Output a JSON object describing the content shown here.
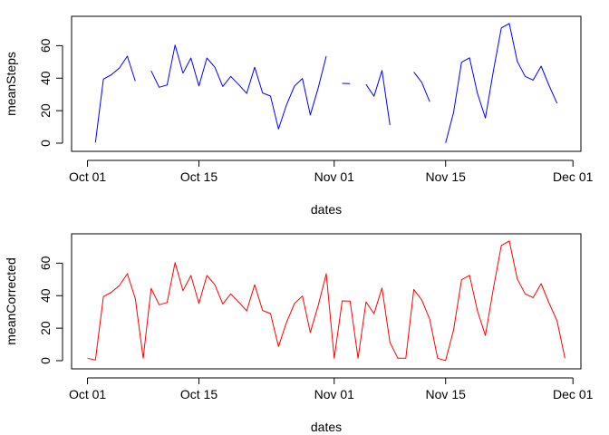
{
  "chart_data": [
    {
      "type": "line",
      "xlabel": "dates",
      "ylabel": "meanSteps",
      "color": "#0000ff",
      "ylim": [
        0,
        73.6
      ],
      "xlim": [
        "2012-09-29",
        "2012-12-02"
      ],
      "x_ticks": [
        {
          "date": "2012-10-01",
          "label": "Oct 01"
        },
        {
          "date": "2012-10-15",
          "label": "Oct 15"
        },
        {
          "date": "2012-11-01",
          "label": "Nov 01"
        },
        {
          "date": "2012-11-15",
          "label": "Nov 15"
        },
        {
          "date": "2012-12-01",
          "label": "Dec 01"
        }
      ],
      "y_ticks": [
        0,
        20,
        40,
        60
      ],
      "series": [
        {
          "x": [
            "2012-10-01",
            "2012-10-02",
            "2012-10-03",
            "2012-10-04",
            "2012-10-05",
            "2012-10-06",
            "2012-10-07",
            "2012-10-08",
            "2012-10-09",
            "2012-10-10",
            "2012-10-11",
            "2012-10-12",
            "2012-10-13",
            "2012-10-14",
            "2012-10-15",
            "2012-10-16",
            "2012-10-17",
            "2012-10-18",
            "2012-10-19",
            "2012-10-20",
            "2012-10-21",
            "2012-10-22",
            "2012-10-23",
            "2012-10-24",
            "2012-10-25",
            "2012-10-26",
            "2012-10-27",
            "2012-10-28",
            "2012-10-29",
            "2012-10-30",
            "2012-10-31",
            "2012-11-01",
            "2012-11-02",
            "2012-11-03",
            "2012-11-04",
            "2012-11-05",
            "2012-11-06",
            "2012-11-07",
            "2012-11-08",
            "2012-11-09",
            "2012-11-10",
            "2012-11-11",
            "2012-11-12",
            "2012-11-13",
            "2012-11-14",
            "2012-11-15",
            "2012-11-16",
            "2012-11-17",
            "2012-11-18",
            "2012-11-19",
            "2012-11-20",
            "2012-11-21",
            "2012-11-22",
            "2012-11-23",
            "2012-11-24",
            "2012-11-25",
            "2012-11-26",
            "2012-11-27",
            "2012-11-28",
            "2012-11-29",
            "2012-11-30"
          ],
          "values": [
            null,
            0.4,
            39.4,
            42.1,
            46.2,
            53.5,
            38.2,
            null,
            44.5,
            34.4,
            35.8,
            60.4,
            43.1,
            52.4,
            35.2,
            52.4,
            46.7,
            34.9,
            41.1,
            36.1,
            30.6,
            46.7,
            30.9,
            29.0,
            8.7,
            23.5,
            35.1,
            39.8,
            17.4,
            34.1,
            53.5,
            null,
            36.8,
            36.7,
            null,
            36.2,
            28.9,
            44.7,
            11.2,
            null,
            null,
            43.8,
            37.4,
            25.5,
            null,
            0.1,
            18.9,
            49.8,
            52.5,
            30.7,
            15.5,
            44.4,
            70.9,
            73.6,
            50.3,
            41.1,
            38.8,
            47.4,
            35.4,
            24.5,
            null
          ]
        }
      ]
    },
    {
      "type": "line",
      "xlabel": "dates",
      "ylabel": "meanCorrected",
      "color": "#ff0000",
      "ylim": [
        0,
        73.6
      ],
      "xlim": [
        "2012-09-29",
        "2012-12-02"
      ],
      "x_ticks": [
        {
          "date": "2012-10-01",
          "label": "Oct 01"
        },
        {
          "date": "2012-10-15",
          "label": "Oct 15"
        },
        {
          "date": "2012-11-01",
          "label": "Nov 01"
        },
        {
          "date": "2012-11-15",
          "label": "Nov 15"
        },
        {
          "date": "2012-12-01",
          "label": "Dec 01"
        }
      ],
      "y_ticks": [
        0,
        20,
        40,
        60
      ],
      "series": [
        {
          "x": [
            "2012-10-01",
            "2012-10-02",
            "2012-10-03",
            "2012-10-04",
            "2012-10-05",
            "2012-10-06",
            "2012-10-07",
            "2012-10-08",
            "2012-10-09",
            "2012-10-10",
            "2012-10-11",
            "2012-10-12",
            "2012-10-13",
            "2012-10-14",
            "2012-10-15",
            "2012-10-16",
            "2012-10-17",
            "2012-10-18",
            "2012-10-19",
            "2012-10-20",
            "2012-10-21",
            "2012-10-22",
            "2012-10-23",
            "2012-10-24",
            "2012-10-25",
            "2012-10-26",
            "2012-10-27",
            "2012-10-28",
            "2012-10-29",
            "2012-10-30",
            "2012-10-31",
            "2012-11-01",
            "2012-11-02",
            "2012-11-03",
            "2012-11-04",
            "2012-11-05",
            "2012-11-06",
            "2012-11-07",
            "2012-11-08",
            "2012-11-09",
            "2012-11-10",
            "2012-11-11",
            "2012-11-12",
            "2012-11-13",
            "2012-11-14",
            "2012-11-15",
            "2012-11-16",
            "2012-11-17",
            "2012-11-18",
            "2012-11-19",
            "2012-11-20",
            "2012-11-21",
            "2012-11-22",
            "2012-11-23",
            "2012-11-24",
            "2012-11-25",
            "2012-11-26",
            "2012-11-27",
            "2012-11-28",
            "2012-11-29",
            "2012-11-30"
          ],
          "values": [
            1.5,
            0.4,
            39.4,
            42.1,
            46.2,
            53.5,
            38.2,
            1.5,
            44.5,
            34.4,
            35.8,
            60.4,
            43.1,
            52.4,
            35.2,
            52.4,
            46.7,
            34.9,
            41.1,
            36.1,
            30.6,
            46.7,
            30.9,
            29.0,
            8.7,
            23.5,
            35.1,
            39.8,
            17.4,
            34.1,
            53.5,
            1.5,
            36.8,
            36.7,
            1.5,
            36.2,
            28.9,
            44.7,
            11.2,
            1.5,
            1.5,
            43.8,
            37.4,
            25.5,
            1.5,
            0.1,
            18.9,
            49.8,
            52.5,
            30.7,
            15.5,
            44.4,
            70.9,
            73.6,
            50.3,
            41.1,
            38.8,
            47.4,
            35.4,
            24.5,
            1.5
          ]
        }
      ]
    }
  ]
}
